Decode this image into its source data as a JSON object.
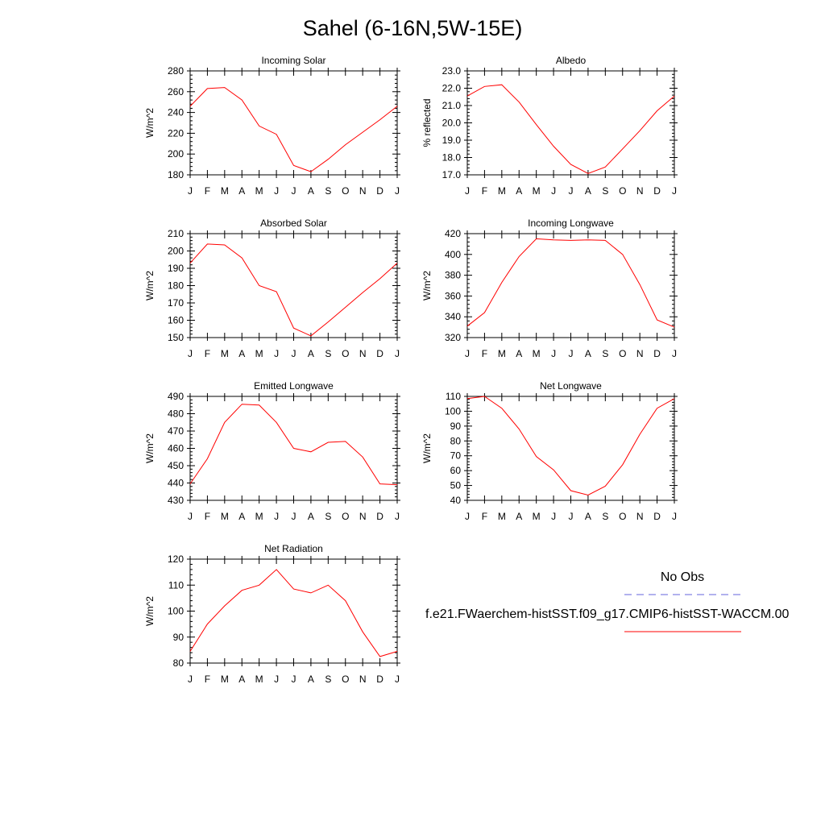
{
  "page": {
    "title": "Sahel (6-16N,5W-15E)"
  },
  "legend": {
    "obs_label": "No Obs",
    "obs_color": "#6666dd",
    "model_label": "f.e21.FWaerchem-histSST.f09_g17.CMIP6-histSST-WACCM.00",
    "model_color": "#ff0000"
  },
  "months": [
    "J",
    "F",
    "M",
    "A",
    "M",
    "J",
    "J",
    "A",
    "S",
    "O",
    "N",
    "D",
    "J"
  ],
  "chart_data": [
    {
      "type": "line",
      "title": "Incoming Solar",
      "ylabel": "W/m^2",
      "ylim": [
        180,
        280
      ],
      "yticks": [
        "180",
        "200",
        "220",
        "240",
        "260",
        "280"
      ],
      "series": [
        {
          "values": [
            246,
            263,
            264,
            252,
            227,
            219,
            189,
            183,
            195,
            209,
            221,
            233,
            246
          ]
        }
      ]
    },
    {
      "type": "line",
      "title": "Albedo",
      "ylabel": "% reflected",
      "ylim": [
        17.0,
        23.0
      ],
      "yticks": [
        "17.0",
        "18.0",
        "19.0",
        "20.0",
        "21.0",
        "22.0",
        "23.0"
      ],
      "series": [
        {
          "values": [
            21.55,
            22.1,
            22.2,
            21.2,
            19.9,
            18.65,
            17.6,
            17.08,
            17.45,
            18.5,
            19.55,
            20.7,
            21.55
          ]
        }
      ]
    },
    {
      "type": "line",
      "title": "Absorbed Solar",
      "ylabel": "W/m^2",
      "ylim": [
        150,
        210
      ],
      "yticks": [
        "150",
        "160",
        "170",
        "180",
        "190",
        "200",
        "210"
      ],
      "series": [
        {
          "values": [
            193,
            204,
            203.5,
            196,
            180,
            176.5,
            155.5,
            151,
            159,
            167.5,
            176,
            184,
            193
          ]
        }
      ]
    },
    {
      "type": "line",
      "title": "Incoming Longwave",
      "ylabel": "W/m^2",
      "ylim": [
        320,
        420
      ],
      "yticks": [
        "320",
        "340",
        "360",
        "380",
        "400",
        "420"
      ],
      "series": [
        {
          "values": [
            331,
            344,
            373,
            398,
            415,
            414,
            413.5,
            414,
            413.5,
            400,
            371,
            337,
            330
          ]
        }
      ]
    },
    {
      "type": "line",
      "title": "Emitted Longwave",
      "ylabel": "W/m^2",
      "ylim": [
        430,
        490
      ],
      "yticks": [
        "430",
        "440",
        "450",
        "460",
        "470",
        "480",
        "490"
      ],
      "series": [
        {
          "values": [
            439.5,
            454,
            475,
            485.5,
            485,
            475,
            460,
            458,
            463.5,
            464,
            455,
            439.5,
            439
          ]
        }
      ]
    },
    {
      "type": "line",
      "title": "Net Longwave",
      "ylabel": "W/m^2",
      "ylim": [
        40,
        110
      ],
      "yticks": [
        "40",
        "50",
        "60",
        "70",
        "80",
        "90",
        "100",
        "110"
      ],
      "series": [
        {
          "values": [
            108.5,
            110,
            102,
            88,
            69.5,
            60.5,
            46.5,
            43.5,
            49.5,
            64,
            84.5,
            102,
            108.5
          ]
        }
      ]
    },
    {
      "type": "line",
      "title": "Net Radiation",
      "ylabel": "W/m^2",
      "ylim": [
        80,
        120
      ],
      "yticks": [
        "80",
        "90",
        "100",
        "110",
        "120"
      ],
      "series": [
        {
          "values": [
            84.5,
            95,
            102,
            108,
            110,
            116,
            108.5,
            107,
            110,
            104,
            92,
            82.5,
            84.5
          ]
        }
      ]
    }
  ]
}
